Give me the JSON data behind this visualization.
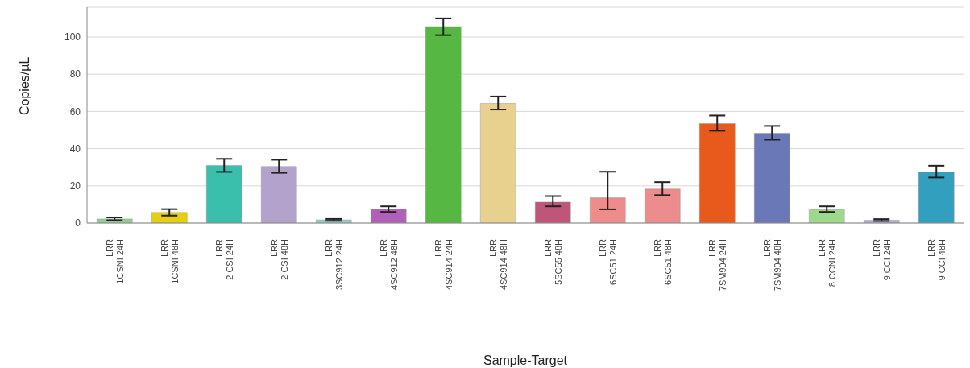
{
  "chart_data": {
    "type": "bar",
    "xlabel": "Sample-Target",
    "ylabel": "Copies/µL",
    "categories": [
      "LRR\n1CSNI 24H",
      "LRR\n1CSNI 48H",
      "LRR\n2 CSI 24H",
      "LRR\n2 CSI 48H",
      "LRR\n3SC912 24H",
      "LRR\n4SC912 48H",
      "LRR\n4SC914 24H",
      "LRR\n4SC914 48H",
      "LRR\n5SC55 48H",
      "LRR\n6SC51 24H",
      "LRR\n6SC51 48H",
      "LRR\n7SM904 24H",
      "LRR\n7SM904 48H",
      "LRR\n8 CCNI 24H",
      "LRR\n9 CCI 24H",
      "LRR\n9 CCI 48H"
    ],
    "values": [
      2.2,
      5.7,
      31,
      30.4,
      1.7,
      7.4,
      105.6,
      64.3,
      11.3,
      13.6,
      18.3,
      53.5,
      48.3,
      7.2,
      1.5,
      27.4
    ],
    "errors": [
      [
        1.5,
        3
      ],
      [
        4,
        7.5
      ],
      [
        27.5,
        34.5
      ],
      [
        27,
        34
      ],
      [
        1.2,
        2.2
      ],
      [
        6,
        9
      ],
      [
        101,
        110
      ],
      [
        61,
        68
      ],
      [
        9,
        14.5
      ],
      [
        7.4,
        27.6
      ],
      [
        15,
        22
      ],
      [
        49.6,
        57.8
      ],
      [
        44.8,
        52.2
      ],
      [
        6,
        9
      ],
      [
        1.1,
        2.1
      ],
      [
        24.5,
        30.8
      ]
    ],
    "colors": [
      "#8fd18a",
      "#e6cf10",
      "#3bbfad",
      "#b3a3cc",
      "#93cfc9",
      "#b060b8",
      "#56b843",
      "#e8d08f",
      "#c0557a",
      "#ee8c8c",
      "#ec8c8c",
      "#e85a1c",
      "#6b78b8",
      "#9dd98a",
      "#b9a9d6",
      "#339fbf"
    ],
    "ylim": [
      0,
      116
    ],
    "yticks": [
      0,
      20,
      40,
      60,
      80,
      100
    ],
    "grid": "y"
  }
}
